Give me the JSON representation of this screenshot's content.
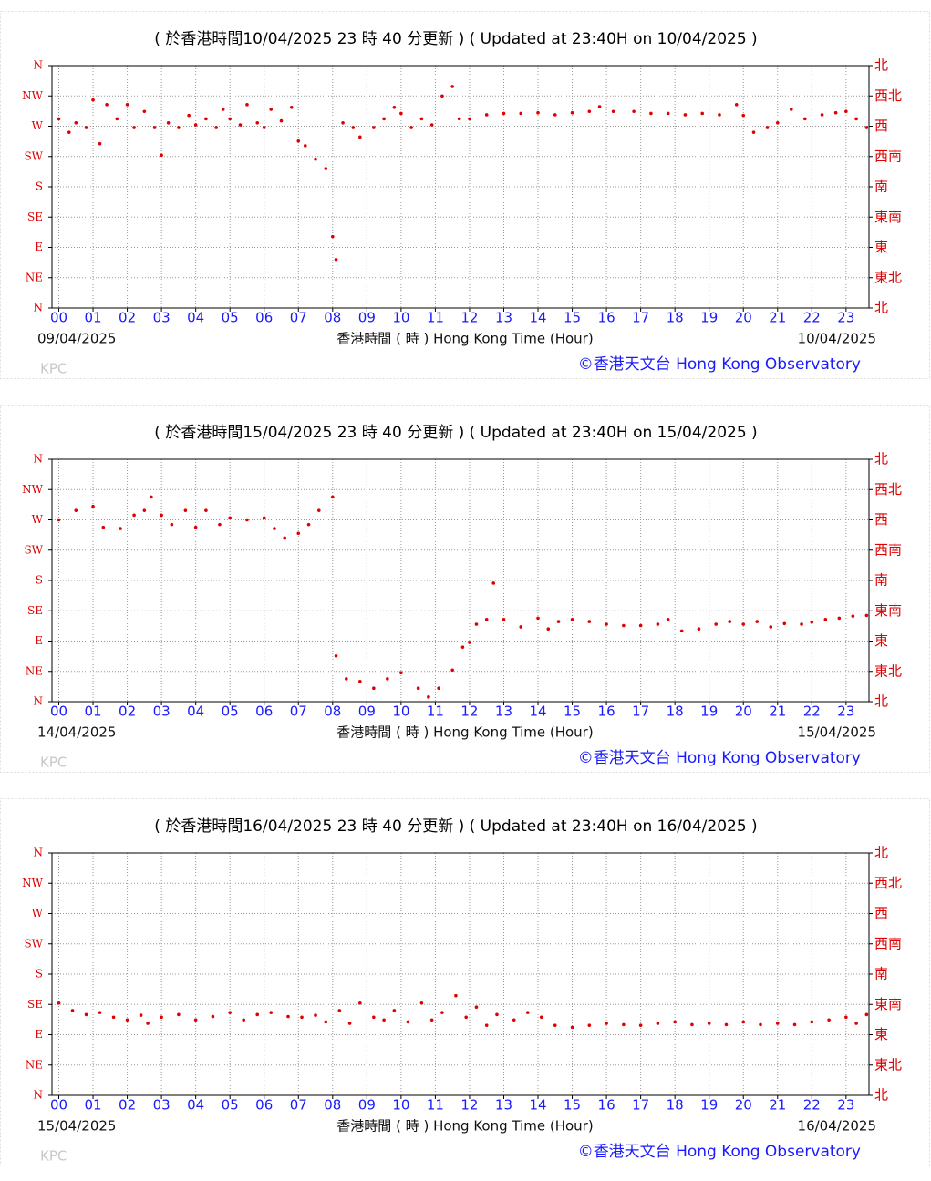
{
  "chart_data": [
    {
      "type": "scatter",
      "title": "( 於香港時間10/04/2025 23 時 40 分更新 ) ( Updated at 23:40H on 10/04/2025 )",
      "xlabel": "香港時間 ( 時 ) Hong Kong Time (Hour)",
      "date_left": "09/04/2025",
      "date_right": "10/04/2025",
      "credit": "©香港天文台 Hong Kong Observatory",
      "watermark": "KPC",
      "color": "#e00000",
      "grid": true,
      "xlim": [
        -0.2,
        23.67
      ],
      "ylim": [
        0,
        360
      ],
      "y2lim": [
        0,
        360
      ],
      "xticks": [
        {
          "value": 0,
          "label": "00"
        },
        {
          "value": 1,
          "label": "01"
        },
        {
          "value": 2,
          "label": "02"
        },
        {
          "value": 3,
          "label": "03"
        },
        {
          "value": 4,
          "label": "04"
        },
        {
          "value": 5,
          "label": "05"
        },
        {
          "value": 6,
          "label": "06"
        },
        {
          "value": 7,
          "label": "07"
        },
        {
          "value": 8,
          "label": "08"
        },
        {
          "value": 9,
          "label": "09"
        },
        10,
        11,
        12,
        13,
        14,
        15,
        16,
        17,
        18,
        19,
        20,
        21,
        22,
        23
      ],
      "yticks": [
        {
          "value": 0,
          "label": "N"
        },
        {
          "value": 45,
          "label": "NE"
        },
        {
          "value": 90,
          "label": "E"
        },
        {
          "value": 135,
          "label": "SE"
        },
        {
          "value": 180,
          "label": "S"
        },
        {
          "value": 225,
          "label": "SW"
        },
        {
          "value": 270,
          "label": "W"
        },
        {
          "value": 315,
          "label": "NW"
        },
        {
          "value": 360,
          "label": "N"
        }
      ],
      "y2ticks": [
        {
          "value": 0,
          "label": "北"
        },
        {
          "value": 45,
          "label": "東北"
        },
        {
          "value": 90,
          "label": "東"
        },
        {
          "value": 135,
          "label": "東南"
        },
        {
          "value": 180,
          "label": "南"
        },
        {
          "value": 225,
          "label": "西南"
        },
        {
          "value": 270,
          "label": "西"
        },
        {
          "value": 315,
          "label": "西北"
        },
        {
          "value": 360,
          "label": "北"
        }
      ],
      "x": [
        0,
        0.3,
        0.5,
        0.8,
        1.0,
        1.2,
        1.4,
        1.7,
        2.0,
        2.2,
        2.5,
        2.8,
        3.0,
        3.2,
        3.5,
        3.8,
        4.0,
        4.3,
        4.6,
        4.8,
        5.0,
        5.3,
        5.5,
        5.8,
        6.0,
        6.2,
        6.5,
        6.8,
        7.0,
        7.2,
        7.5,
        7.8,
        8.0,
        8.1,
        8.3,
        8.6,
        8.8,
        9.2,
        9.5,
        9.8,
        10.0,
        10.3,
        10.6,
        10.9,
        11.2,
        11.5,
        11.7,
        12.0,
        12.5,
        13.0,
        13.5,
        14.0,
        14.5,
        15.0,
        15.5,
        15.8,
        16.2,
        16.8,
        17.3,
        17.8,
        18.3,
        18.8,
        19.3,
        19.8,
        20.0,
        20.3,
        20.7,
        21.0,
        21.4,
        21.8,
        22.3,
        22.7,
        23.0,
        23.3,
        23.6
      ],
      "values": [
        281,
        261,
        275,
        268,
        309,
        244,
        302,
        281,
        302,
        268,
        292,
        268,
        227,
        275,
        268,
        286,
        272,
        281,
        268,
        295,
        281,
        272,
        302,
        275,
        268,
        295,
        278,
        298,
        248,
        241,
        221,
        207,
        106,
        72,
        275,
        268,
        254,
        268,
        281,
        298,
        289,
        268,
        281,
        272,
        315,
        329,
        281,
        281,
        287,
        289,
        289,
        290,
        287,
        290,
        292,
        299,
        292,
        292,
        289,
        289,
        287,
        289,
        287,
        302,
        286,
        261,
        268,
        275,
        295,
        281,
        287,
        290,
        292,
        281,
        268
      ]
    },
    {
      "type": "scatter",
      "title": "( 於香港時間15/04/2025 23 時 40 分更新 ) ( Updated at 23:40H on 15/04/2025 )",
      "xlabel": "香港時間 ( 時 ) Hong Kong Time (Hour)",
      "date_left": "14/04/2025",
      "date_right": "15/04/2025",
      "credit": "©香港天文台 Hong Kong Observatory",
      "watermark": "KPC",
      "color": "#e00000",
      "grid": true,
      "xlim": [
        -0.2,
        23.67
      ],
      "ylim": [
        0,
        360
      ],
      "y2lim": [
        0,
        360
      ],
      "xticks": [
        {
          "value": 0,
          "label": "00"
        },
        {
          "value": 1,
          "label": "01"
        },
        {
          "value": 2,
          "label": "02"
        },
        {
          "value": 3,
          "label": "03"
        },
        {
          "value": 4,
          "label": "04"
        },
        {
          "value": 5,
          "label": "05"
        },
        {
          "value": 6,
          "label": "06"
        },
        {
          "value": 7,
          "label": "07"
        },
        {
          "value": 8,
          "label": "08"
        },
        {
          "value": 9,
          "label": "09"
        },
        10,
        11,
        12,
        13,
        14,
        15,
        16,
        17,
        18,
        19,
        20,
        21,
        22,
        23
      ],
      "yticks": [
        {
          "value": 0,
          "label": "N"
        },
        {
          "value": 45,
          "label": "NE"
        },
        {
          "value": 90,
          "label": "E"
        },
        {
          "value": 135,
          "label": "SE"
        },
        {
          "value": 180,
          "label": "S"
        },
        {
          "value": 225,
          "label": "SW"
        },
        {
          "value": 270,
          "label": "W"
        },
        {
          "value": 315,
          "label": "NW"
        },
        {
          "value": 360,
          "label": "N"
        }
      ],
      "y2ticks": [
        {
          "value": 0,
          "label": "北"
        },
        {
          "value": 45,
          "label": "東北"
        },
        {
          "value": 90,
          "label": "東"
        },
        {
          "value": 135,
          "label": "東南"
        },
        {
          "value": 180,
          "label": "南"
        },
        {
          "value": 225,
          "label": "西南"
        },
        {
          "value": 270,
          "label": "西"
        },
        {
          "value": 315,
          "label": "西北"
        },
        {
          "value": 360,
          "label": "北"
        }
      ],
      "x": [
        0,
        0.5,
        1.0,
        1.3,
        1.8,
        2.2,
        2.5,
        2.7,
        3.0,
        3.3,
        3.7,
        4.0,
        4.3,
        4.7,
        5.0,
        5.5,
        6.0,
        6.3,
        6.6,
        7.0,
        7.3,
        7.6,
        8.0,
        8.1,
        8.4,
        8.8,
        9.2,
        9.6,
        10.0,
        10.5,
        10.8,
        11.1,
        11.5,
        11.8,
        12.0,
        12.2,
        12.5,
        12.7,
        13.0,
        13.5,
        14.0,
        14.3,
        14.6,
        15.0,
        15.5,
        16.0,
        16.5,
        17.0,
        17.5,
        17.8,
        18.2,
        18.7,
        19.2,
        19.6,
        20.0,
        20.4,
        20.8,
        21.2,
        21.7,
        22.0,
        22.4,
        22.8,
        23.2,
        23.6
      ],
      "values": [
        270,
        284,
        290,
        259,
        257,
        277,
        284,
        304,
        277,
        263,
        284,
        259,
        284,
        263,
        273,
        270,
        273,
        257,
        243,
        250,
        263,
        284,
        304,
        68,
        34,
        30,
        20,
        34,
        43,
        20,
        7,
        20,
        47,
        81,
        88,
        115,
        122,
        176,
        122,
        111,
        124,
        108,
        119,
        122,
        119,
        115,
        113,
        113,
        115,
        122,
        105,
        108,
        115,
        119,
        115,
        119,
        111,
        116,
        115,
        118,
        122,
        124,
        127,
        128
      ]
    },
    {
      "type": "scatter",
      "title": "( 於香港時間16/04/2025 23 時 40 分更新 ) ( Updated at 23:40H on 16/04/2025 )",
      "xlabel": "香港時間 ( 時 ) Hong Kong Time (Hour)",
      "date_left": "15/04/2025",
      "date_right": "16/04/2025",
      "credit": "©香港天文台 Hong Kong Observatory",
      "watermark": "KPC",
      "color": "#e00000",
      "grid": true,
      "xlim": [
        -0.2,
        23.67
      ],
      "ylim": [
        0,
        360
      ],
      "y2lim": [
        0,
        360
      ],
      "xticks": [
        {
          "value": 0,
          "label": "00"
        },
        {
          "value": 1,
          "label": "01"
        },
        {
          "value": 2,
          "label": "02"
        },
        {
          "value": 3,
          "label": "03"
        },
        {
          "value": 4,
          "label": "04"
        },
        {
          "value": 5,
          "label": "05"
        },
        {
          "value": 6,
          "label": "06"
        },
        {
          "value": 7,
          "label": "07"
        },
        {
          "value": 8,
          "label": "08"
        },
        {
          "value": 9,
          "label": "09"
        },
        10,
        11,
        12,
        13,
        14,
        15,
        16,
        17,
        18,
        19,
        20,
        21,
        22,
        23
      ],
      "yticks": [
        {
          "value": 0,
          "label": "N"
        },
        {
          "value": 45,
          "label": "NE"
        },
        {
          "value": 90,
          "label": "E"
        },
        {
          "value": 135,
          "label": "SE"
        },
        {
          "value": 180,
          "label": "S"
        },
        {
          "value": 225,
          "label": "SW"
        },
        {
          "value": 270,
          "label": "W"
        },
        {
          "value": 315,
          "label": "NW"
        },
        {
          "value": 360,
          "label": "N"
        }
      ],
      "y2ticks": [
        {
          "value": 0,
          "label": "北"
        },
        {
          "value": 45,
          "label": "東北"
        },
        {
          "value": 90,
          "label": "東"
        },
        {
          "value": 135,
          "label": "東南"
        },
        {
          "value": 180,
          "label": "南"
        },
        {
          "value": 225,
          "label": "西南"
        },
        {
          "value": 270,
          "label": "西"
        },
        {
          "value": 315,
          "label": "西北"
        },
        {
          "value": 360,
          "label": "北"
        }
      ],
      "x": [
        0,
        0.4,
        0.8,
        1.2,
        1.6,
        2.0,
        2.4,
        2.6,
        3.0,
        3.5,
        4.0,
        4.5,
        5.0,
        5.4,
        5.8,
        6.2,
        6.7,
        7.1,
        7.5,
        7.8,
        8.2,
        8.5,
        8.8,
        9.2,
        9.5,
        9.8,
        10.2,
        10.6,
        10.9,
        11.2,
        11.6,
        11.9,
        12.2,
        12.5,
        12.8,
        13.3,
        13.7,
        14.1,
        14.5,
        15.0,
        15.5,
        16.0,
        16.5,
        17.0,
        17.5,
        18.0,
        18.5,
        19.0,
        19.5,
        20.0,
        20.5,
        21.0,
        21.5,
        22.0,
        22.5,
        23.0,
        23.3,
        23.6
      ],
      "values": [
        137,
        126,
        120,
        123,
        116,
        112,
        119,
        107,
        116,
        120,
        112,
        117,
        123,
        112,
        120,
        123,
        117,
        116,
        119,
        109,
        126,
        107,
        137,
        116,
        112,
        126,
        109,
        137,
        112,
        123,
        148,
        116,
        131,
        104,
        120,
        112,
        123,
        116,
        104,
        101,
        104,
        107,
        105,
        104,
        107,
        109,
        105,
        107,
        105,
        109,
        105,
        107,
        105,
        109,
        112,
        116,
        107,
        120
      ]
    }
  ]
}
